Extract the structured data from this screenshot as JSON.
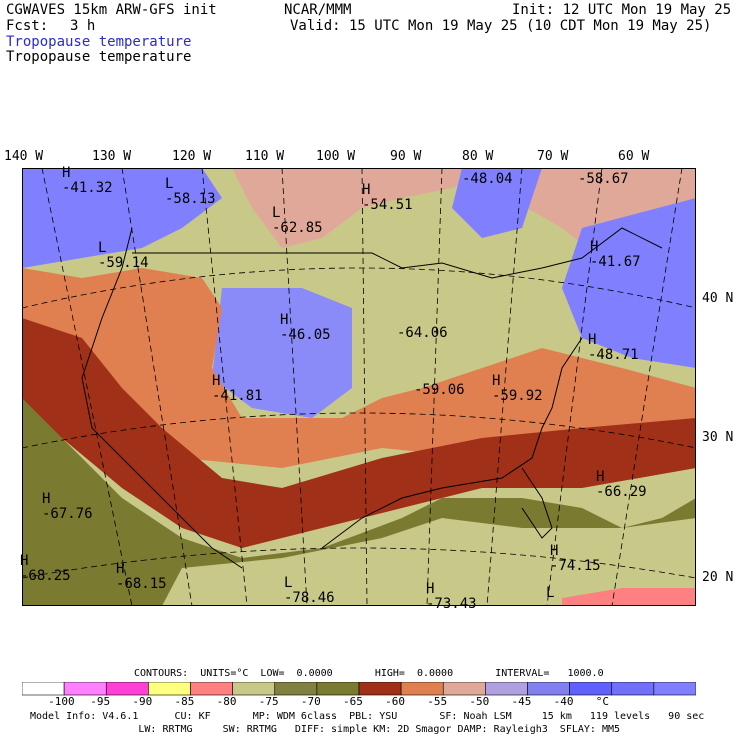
{
  "header": {
    "model": "CGWAVES 15km ARW-GFS init",
    "org": "NCAR/MMM",
    "init": "Init: 12 UTC Mon 19 May 25",
    "fcst_label": "Fcst:",
    "fcst_value": "3 h",
    "valid": "Valid: 15 UTC Mon 19 May 25 (10 CDT Mon 19 May 25)",
    "field_title_colored": "Tropopause temperature",
    "field_title": "Tropopause temperature"
  },
  "longitudes": [
    "140 W",
    "130 W",
    "120 W",
    "110 W",
    "100 W",
    "90 W",
    "80 W",
    "70 W",
    "60 W"
  ],
  "latitudes": [
    "40 N",
    "30 N",
    "20 N"
  ],
  "map_labels": [
    {
      "hl": "H",
      "value": "-41.32"
    },
    {
      "hl": "L",
      "value": "-58.13"
    },
    {
      "hl": "L",
      "value": "-62.85"
    },
    {
      "hl": "H",
      "value": "-54.51"
    },
    {
      "hl": "",
      "value": "-48.04"
    },
    {
      "hl": "",
      "value": "-58.67"
    },
    {
      "hl": "L",
      "value": "-59.14"
    },
    {
      "hl": "H",
      "value": "-41.67"
    },
    {
      "hl": "H",
      "value": "-46.05"
    },
    {
      "hl": "",
      "value": "-64.06"
    },
    {
      "hl": "H",
      "value": "-48.71"
    },
    {
      "hl": "H",
      "value": "-41.81"
    },
    {
      "hl": "",
      "value": "-59.06"
    },
    {
      "hl": "H",
      "value": "-59.92"
    },
    {
      "hl": "H",
      "value": "-66.29"
    },
    {
      "hl": "H",
      "value": "-67.76"
    },
    {
      "hl": "H",
      "value": "-74.15"
    },
    {
      "hl": "H",
      "value": "-68.25"
    },
    {
      "hl": "H",
      "value": "-68.15"
    },
    {
      "hl": "L",
      "value": "-78.46"
    },
    {
      "hl": "H",
      "value": "-73.43"
    },
    {
      "hl": "L",
      "value": ""
    }
  ],
  "contours_line": "CONTOURS:  UNITS=°C  LOW=  0.0000       HIGH=  0.0000       INTERVAL=   1000.0",
  "colorbar": {
    "colors": [
      "#ffffff",
      "#ff80ff",
      "#ff40d8",
      "#ffff80",
      "#ff8080",
      "#c8c888",
      "#808040",
      "#7a7a30",
      "#a03018",
      "#e08050",
      "#e0a898",
      "#b0a0e0",
      "#8080f0",
      "#6060ff",
      "#7070f8",
      "#8080ff"
    ],
    "labels": [
      "-100",
      "-95",
      "-90",
      "-85",
      "-80",
      "-75",
      "-70",
      "-65",
      "-60",
      "-55",
      "-50",
      "-45",
      "-40",
      "°C"
    ]
  },
  "footer": {
    "line1": "Model Info: V4.6.1      CU: KF       MP: WDM 6class  PBL: YSU       SF: Noah LSM     15 km   119 levels   90 sec",
    "line2": "                  LW: RRTMG     SW: RRTMG   DIFF: simple KM: 2D Smagor DAMP: Rayleigh3  SFLAY: MM5"
  }
}
